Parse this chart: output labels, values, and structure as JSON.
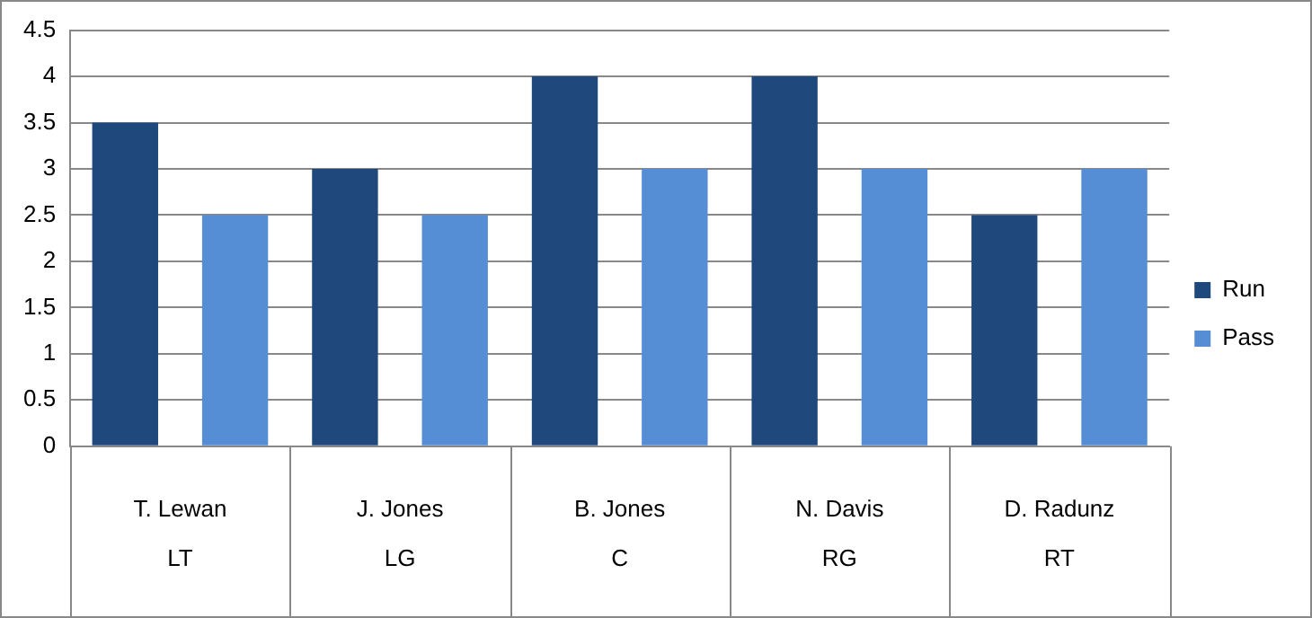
{
  "chart_data": {
    "type": "bar",
    "categories": [
      "T. Lewan\nLT",
      "J. Jones\nLG",
      "B. Jones\nC",
      "N. Davis\nRG",
      "D. Radunz\nRT"
    ],
    "series": [
      {
        "name": "Run",
        "color": "#1f497d",
        "values": [
          3.5,
          3,
          4,
          4,
          2.5
        ]
      },
      {
        "name": "Pass",
        "color": "#558ed5",
        "values": [
          2.5,
          2.5,
          3,
          3,
          3
        ]
      }
    ],
    "ylim": [
      0,
      4.5
    ],
    "yticks": [
      0,
      0.5,
      1,
      1.5,
      2,
      2.5,
      3,
      3.5,
      4,
      4.5
    ],
    "grid": "y",
    "legend": "right"
  }
}
